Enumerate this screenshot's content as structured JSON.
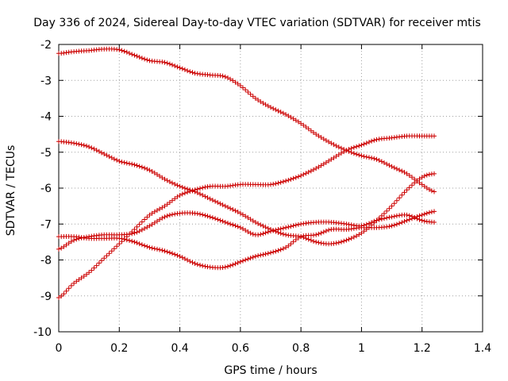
{
  "chart_data": {
    "type": "scatter",
    "title": "Day 336 of 2024, Sidereal Day-to-day VTEC variation (SDTVAR) for receiver mtis",
    "xlabel": "GPS time / hours",
    "ylabel": "SDTVAR / TECUs",
    "xlim": [
      0,
      1.4
    ],
    "ylim": [
      -10,
      -2
    ],
    "xticks": [
      0,
      0.2,
      0.4,
      0.6,
      0.8,
      1,
      1.2,
      1.4
    ],
    "yticks": [
      -2,
      -3,
      -4,
      -5,
      -6,
      -7,
      -8,
      -9,
      -10
    ],
    "xtick_labels": [
      "0",
      "0.2",
      "0.4",
      "0.6",
      "0.8",
      "1",
      "1.2",
      "1.4"
    ],
    "ytick_labels": [
      "-2",
      "-3",
      "-4",
      "-5",
      "-6",
      "-7",
      "-8",
      "-9",
      "-10"
    ],
    "grid": true,
    "marker": "+",
    "marker_color": "#cc0000",
    "series": [
      {
        "name": "series-1",
        "x": [
          0,
          0.05,
          0.1,
          0.15,
          0.2,
          0.25,
          0.3,
          0.35,
          0.4,
          0.45,
          0.5,
          0.55,
          0.6,
          0.65,
          0.7,
          0.75,
          0.8,
          0.85,
          0.9,
          0.95,
          1.0,
          1.05,
          1.1,
          1.15,
          1.2,
          1.24
        ],
        "y": [
          -2.25,
          -2.2,
          -2.17,
          -2.13,
          -2.15,
          -2.3,
          -2.45,
          -2.5,
          -2.65,
          -2.8,
          -2.85,
          -2.9,
          -3.15,
          -3.5,
          -3.75,
          -3.95,
          -4.2,
          -4.5,
          -4.75,
          -4.95,
          -5.1,
          -5.2,
          -5.4,
          -5.6,
          -5.9,
          -6.1
        ]
      },
      {
        "name": "series-2",
        "x": [
          0,
          0.05,
          0.1,
          0.15,
          0.2,
          0.25,
          0.3,
          0.35,
          0.4,
          0.45,
          0.5,
          0.55,
          0.6,
          0.65,
          0.7,
          0.75,
          0.8,
          0.85,
          0.9,
          0.95,
          1.0,
          1.05,
          1.1,
          1.15,
          1.2,
          1.24
        ],
        "y": [
          -4.7,
          -4.75,
          -4.85,
          -5.05,
          -5.25,
          -5.35,
          -5.5,
          -5.75,
          -5.95,
          -6.1,
          -6.3,
          -6.5,
          -6.7,
          -6.95,
          -7.15,
          -7.3,
          -7.35,
          -7.5,
          -7.55,
          -7.45,
          -7.25,
          -6.9,
          -6.5,
          -6.05,
          -5.7,
          -5.6
        ]
      },
      {
        "name": "series-3",
        "x": [
          0,
          0.05,
          0.1,
          0.15,
          0.2,
          0.25,
          0.3,
          0.35,
          0.4,
          0.45,
          0.5,
          0.55,
          0.6,
          0.65,
          0.7,
          0.75,
          0.8,
          0.85,
          0.9,
          0.95,
          1.0,
          1.05,
          1.1,
          1.15,
          1.2,
          1.24
        ],
        "y": [
          -7.7,
          -7.45,
          -7.35,
          -7.3,
          -7.3,
          -7.25,
          -7.05,
          -6.8,
          -6.7,
          -6.7,
          -6.8,
          -6.95,
          -7.1,
          -7.3,
          -7.2,
          -7.1,
          -7.0,
          -6.95,
          -6.95,
          -7.0,
          -7.05,
          -6.9,
          -6.8,
          -6.75,
          -6.9,
          -6.95
        ]
      },
      {
        "name": "series-4",
        "x": [
          0,
          0.05,
          0.1,
          0.15,
          0.2,
          0.25,
          0.3,
          0.35,
          0.4,
          0.45,
          0.5,
          0.55,
          0.6,
          0.65,
          0.7,
          0.75,
          0.8,
          0.85,
          0.9,
          0.95,
          1.0,
          1.05,
          1.1,
          1.15,
          1.2,
          1.24
        ],
        "y": [
          -9.05,
          -8.65,
          -8.35,
          -7.95,
          -7.55,
          -7.15,
          -6.75,
          -6.5,
          -6.2,
          -6.05,
          -5.95,
          -5.95,
          -5.9,
          -5.9,
          -5.9,
          -5.8,
          -5.65,
          -5.45,
          -5.2,
          -4.95,
          -4.8,
          -4.65,
          -4.6,
          -4.55,
          -4.55,
          -4.55
        ]
      },
      {
        "name": "series-5",
        "x": [
          0,
          0.05,
          0.1,
          0.15,
          0.2,
          0.25,
          0.3,
          0.35,
          0.4,
          0.45,
          0.5,
          0.55,
          0.6,
          0.65,
          0.7,
          0.75,
          0.8,
          0.85,
          0.9,
          0.95,
          1.0,
          1.05,
          1.1,
          1.15,
          1.2,
          1.24
        ],
        "y": [
          -7.35,
          -7.35,
          -7.4,
          -7.4,
          -7.4,
          -7.5,
          -7.65,
          -7.75,
          -7.9,
          -8.1,
          -8.2,
          -8.2,
          -8.05,
          -7.9,
          -7.8,
          -7.65,
          -7.35,
          -7.3,
          -7.15,
          -7.15,
          -7.1,
          -7.1,
          -7.05,
          -6.9,
          -6.75,
          -6.65
        ]
      }
    ]
  }
}
